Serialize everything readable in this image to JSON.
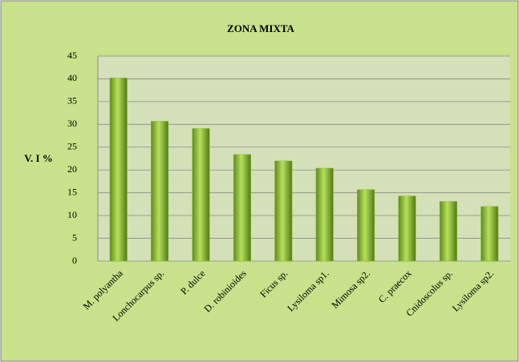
{
  "chart_data": {
    "type": "bar",
    "title": "ZONA MIXTA",
    "y_label": "V. I %",
    "categories": [
      "M. polyantha",
      "Lonchocarpus sp.",
      "P. dulce",
      "D. robinioides",
      "Ficus sp.",
      "Lysiloma sp1.",
      "Mimosa sp2.",
      "C. praecox",
      "Cnidoscolus sp.",
      "Lysiloma sp2."
    ],
    "values": [
      40.2,
      30.7,
      29.1,
      23.4,
      22.0,
      20.4,
      15.7,
      14.3,
      13.1,
      12.0
    ],
    "color": "#8fc23a",
    "ylim": [
      0,
      45
    ],
    "yticks": [
      0,
      5,
      10,
      15,
      20,
      25,
      30,
      35,
      40,
      45
    ],
    "grid": true
  }
}
